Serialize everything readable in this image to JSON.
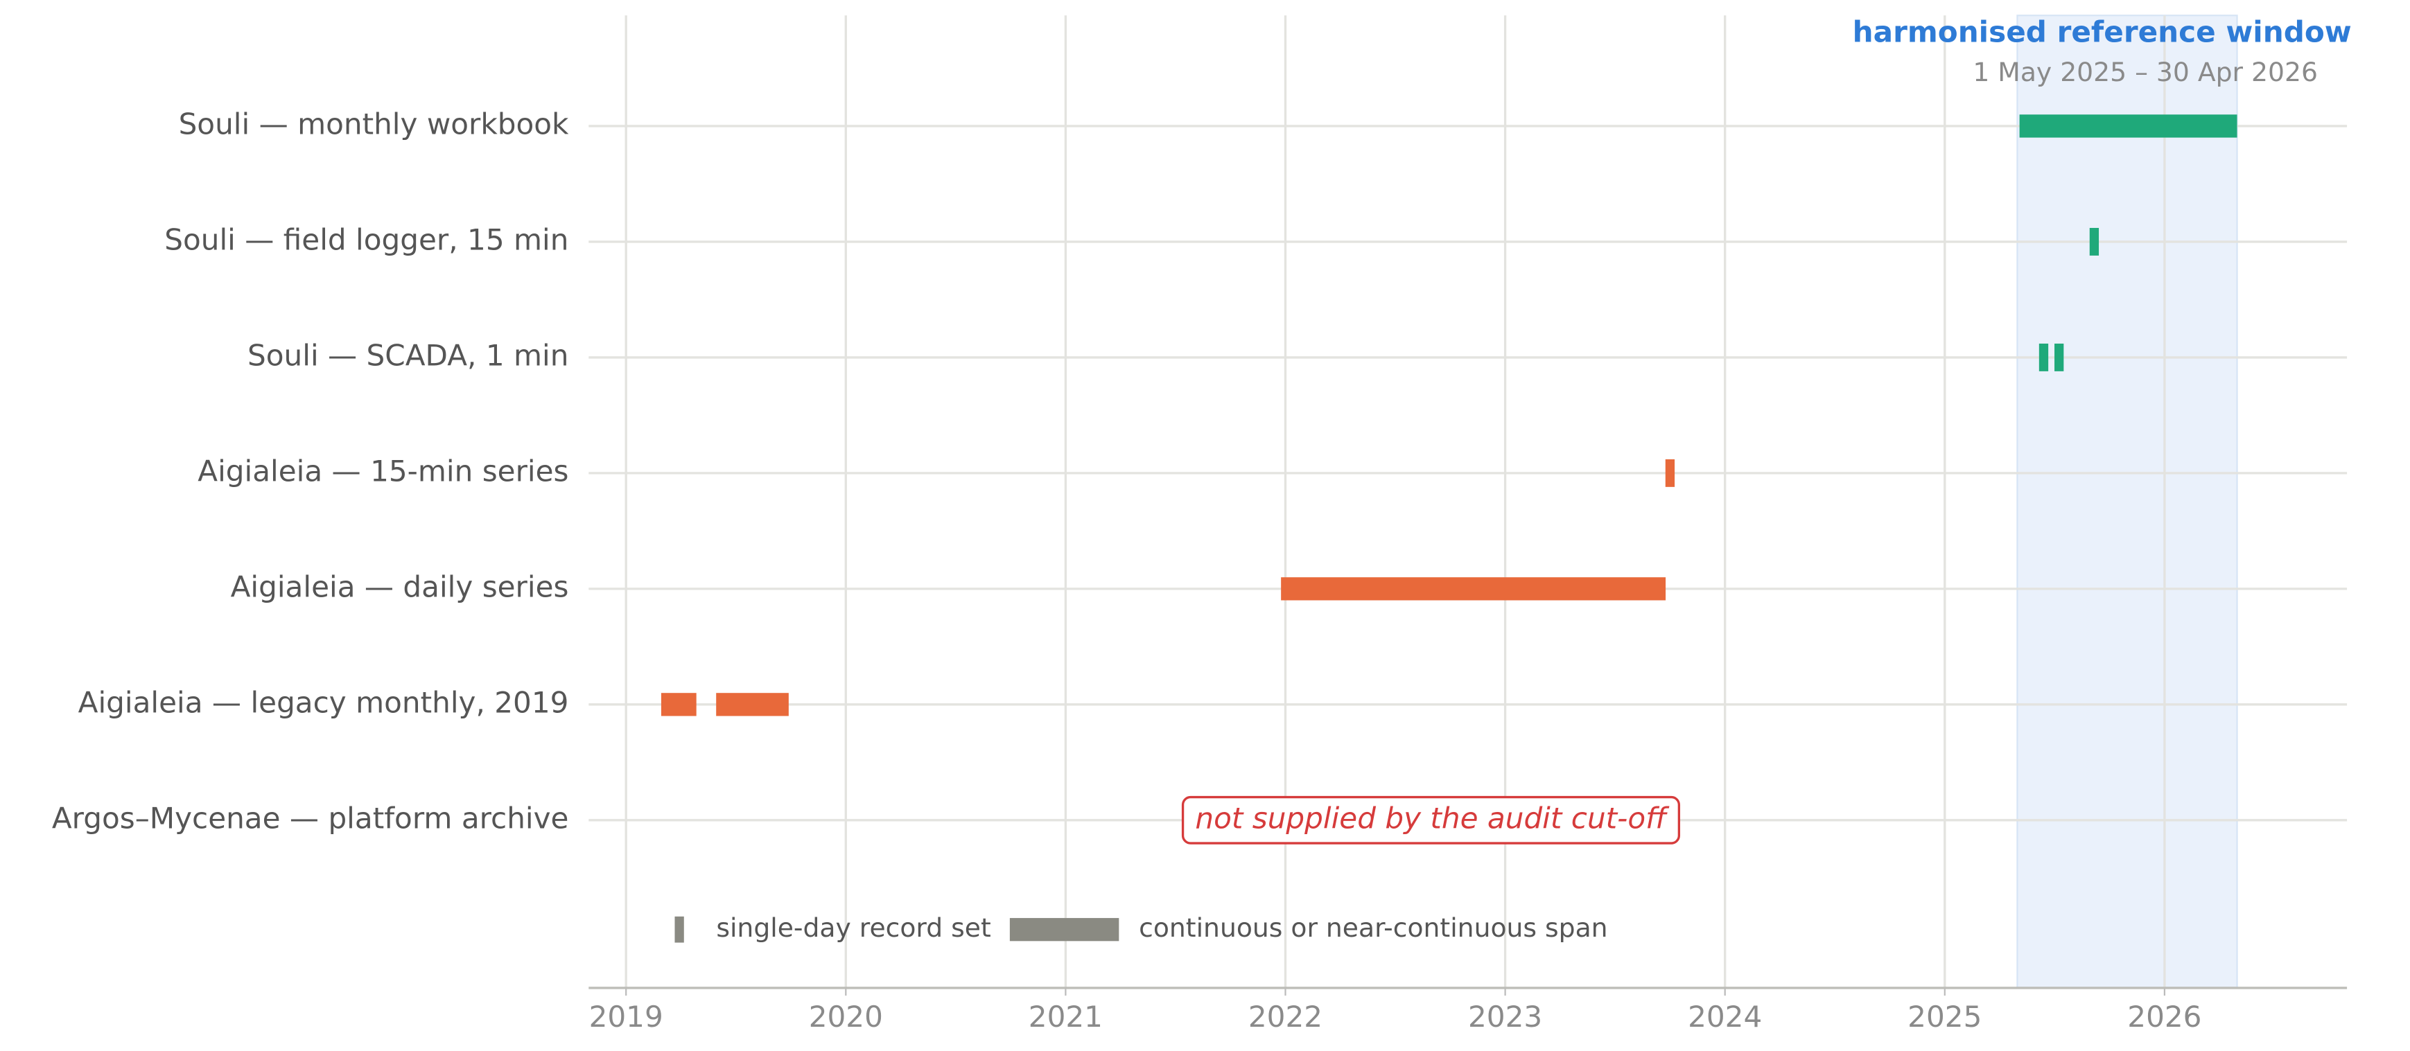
{
  "chart_data": {
    "type": "timeline",
    "xlim": [
      2018.83,
      2026.83
    ],
    "xticks": [
      2019,
      2020,
      2021,
      2022,
      2023,
      2024,
      2025,
      2026
    ],
    "grid": true,
    "window": {
      "title": "harmonised reference window",
      "subtitle": "1 May 2025 – 30 Apr 2026",
      "start": 2025.33,
      "end": 2026.33,
      "color": "#2e7bd6"
    },
    "rows": [
      {
        "label": "Souli — monthly workbook",
        "color": "#1fa97a",
        "spans": [
          {
            "start": 2025.34,
            "end": 2026.33
          }
        ]
      },
      {
        "label": "Souli — field logger, 15 min",
        "color": "#1fa97a",
        "spans": [
          {
            "start": 2025.68,
            "end": 2025.68
          }
        ]
      },
      {
        "label": "Souli — SCADA, 1 min",
        "color": "#1fa97a",
        "spans": [
          {
            "start": 2025.45,
            "end": 2025.45
          },
          {
            "start": 2025.52,
            "end": 2025.52
          }
        ]
      },
      {
        "label": "Aigialeia — 15-min series",
        "color": "#e8693a",
        "spans": [
          {
            "start": 2023.75,
            "end": 2023.75
          }
        ]
      },
      {
        "label": "Aigialeia — daily series",
        "color": "#e8693a",
        "spans": [
          {
            "start": 2021.98,
            "end": 2023.73
          }
        ]
      },
      {
        "label": "Aigialeia — legacy monthly, 2019",
        "color": "#e8693a",
        "spans": [
          {
            "start": 2019.16,
            "end": 2019.32
          },
          {
            "start": 2019.41,
            "end": 2019.74
          }
        ]
      },
      {
        "label": "Argos–Mycenae — platform archive",
        "color": "#d63b3b",
        "spans": [],
        "note": "not supplied by the audit cut-off"
      }
    ],
    "legend": [
      {
        "label": "single-day record set",
        "marker": "tick",
        "color": "#8a8a82"
      },
      {
        "label": "continuous or near-continuous span",
        "marker": "span",
        "color": "#8a8a82"
      }
    ]
  }
}
